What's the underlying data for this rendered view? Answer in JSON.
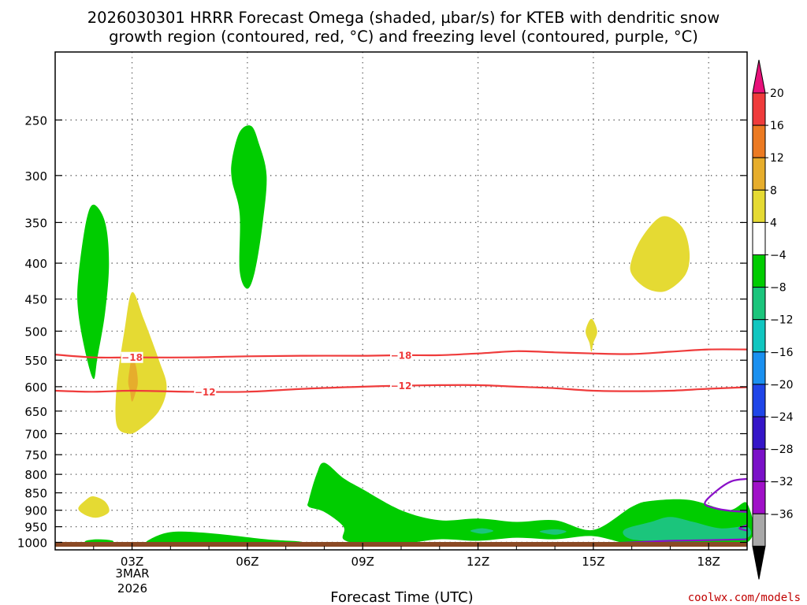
{
  "chart_data": {
    "type": "contour",
    "title_line1": "2026030301 HRRR Forecast Omega (shaded, µbar/s) for KTEB with dendritic snow",
    "title_line2": "growth region (contoured, red, °C) and freezing level (contoured, purple, °C)",
    "xlabel": "Forecast Time (UTC)",
    "x_ticks": [
      {
        "label": "03Z",
        "hour": 3
      },
      {
        "label": "06Z",
        "hour": 6
      },
      {
        "label": "09Z",
        "hour": 9
      },
      {
        "label": "12Z",
        "hour": 12
      },
      {
        "label": "15Z",
        "hour": 15
      },
      {
        "label": "18Z",
        "hour": 18
      }
    ],
    "date_label_line1": "3MAR",
    "date_label_line2": "2026",
    "x_range_hours": [
      1,
      19
    ],
    "y_axis": "pressure (mb), log scale, inverted",
    "y_range_mb": [
      1025,
      200
    ],
    "y_ticks": [
      250,
      300,
      350,
      400,
      450,
      500,
      550,
      600,
      650,
      700,
      750,
      800,
      850,
      900,
      950,
      1000
    ],
    "colorbar": {
      "levels": [
        "20",
        "16",
        "12",
        "8",
        "4",
        "-4",
        "-8",
        "-12",
        "-16",
        "-20",
        "-24",
        "-28",
        "-32",
        "-36"
      ],
      "colors": [
        "#e8117a",
        "#ef3b3b",
        "#ec7a22",
        "#e6ad2c",
        "#e5da33",
        "#ffffff",
        "#00cc00",
        "#1bc57c",
        "#11c6c0",
        "#1a90f0",
        "#1f45e8",
        "#3515c8",
        "#7a10c8",
        "#a010c8",
        "#a8a8a8",
        "#000000"
      ]
    },
    "dendritic_contours": [
      {
        "label": "-18",
        "color": "#ef3b3b",
        "points": [
          [
            1.0,
            540
          ],
          [
            2.0,
            545
          ],
          [
            3.0,
            545
          ],
          [
            4.5,
            545
          ],
          [
            6.0,
            543
          ],
          [
            7.5,
            542
          ],
          [
            9.0,
            542
          ],
          [
            10.0,
            541
          ],
          [
            11.0,
            541
          ],
          [
            12.0,
            538
          ],
          [
            13.0,
            534
          ],
          [
            14.0,
            536
          ],
          [
            15.0,
            538
          ],
          [
            16.0,
            539
          ],
          [
            17.0,
            535
          ],
          [
            18.0,
            531
          ],
          [
            19.0,
            531
          ]
        ]
      },
      {
        "label": "-12",
        "color": "#ef3b3b",
        "points": [
          [
            1.0,
            608
          ],
          [
            2.0,
            610
          ],
          [
            3.0,
            608
          ],
          [
            4.5,
            610
          ],
          [
            6.0,
            610
          ],
          [
            7.5,
            604
          ],
          [
            9.0,
            600
          ],
          [
            10.0,
            598
          ],
          [
            11.0,
            597
          ],
          [
            12.0,
            597
          ],
          [
            13.0,
            600
          ],
          [
            14.0,
            603
          ],
          [
            15.0,
            608
          ],
          [
            16.0,
            609
          ],
          [
            17.0,
            608
          ],
          [
            18.0,
            604
          ],
          [
            19.0,
            601
          ]
        ]
      }
    ],
    "freezing_contours": [
      {
        "label": "0",
        "color": "#8a10c8",
        "points": [
          [
            14.2,
            1010
          ],
          [
            15.0,
            1005
          ],
          [
            16.0,
            1000
          ],
          [
            17.0,
            995
          ],
          [
            18.0,
            993
          ],
          [
            19.0,
            990
          ]
        ]
      },
      {
        "label": "0",
        "color": "#8a10c8",
        "points": [
          [
            19.0,
            812
          ],
          [
            18.6,
            818
          ],
          [
            18.2,
            845
          ],
          [
            17.9,
            880
          ],
          [
            18.2,
            895
          ],
          [
            18.6,
            902
          ],
          [
            19.0,
            905
          ]
        ]
      },
      {
        "label": "0",
        "color": "#8a10c8",
        "points": [
          [
            19.0,
            945
          ],
          [
            18.8,
            955
          ],
          [
            19.0,
            962
          ]
        ]
      }
    ],
    "omega_regions": [
      {
        "value": "-4 to -8",
        "color": "#00cc00",
        "points": [
          [
            1.6,
            470
          ],
          [
            1.6,
            420
          ],
          [
            1.8,
            350
          ],
          [
            2.0,
            330
          ],
          [
            2.3,
            350
          ],
          [
            2.4,
            400
          ],
          [
            2.3,
            470
          ],
          [
            2.1,
            545
          ],
          [
            2.0,
            585
          ],
          [
            1.8,
            540
          ]
        ]
      },
      {
        "value": "-4 to -8",
        "color": "#00cc00",
        "points": [
          [
            5.6,
            285
          ],
          [
            5.8,
            260
          ],
          [
            6.1,
            255
          ],
          [
            6.3,
            270
          ],
          [
            6.5,
            300
          ],
          [
            6.4,
            350
          ],
          [
            6.2,
            410
          ],
          [
            6.0,
            435
          ],
          [
            5.8,
            410
          ],
          [
            5.8,
            340
          ],
          [
            5.6,
            305
          ]
        ]
      },
      {
        "value": "4 to 8",
        "color": "#e5da33",
        "points": [
          [
            2.6,
            680
          ],
          [
            2.6,
            600
          ],
          [
            2.8,
            500
          ],
          [
            3.0,
            440
          ],
          [
            3.3,
            480
          ],
          [
            3.7,
            550
          ],
          [
            3.9,
            600
          ],
          [
            3.7,
            650
          ],
          [
            3.2,
            690
          ],
          [
            2.9,
            700
          ]
        ]
      },
      {
        "value": "8 to 12",
        "color": "#e6ad2c",
        "points": [
          [
            2.9,
            590
          ],
          [
            2.95,
            560
          ],
          [
            3.0,
            540
          ],
          [
            3.1,
            560
          ],
          [
            3.15,
            590
          ],
          [
            3.1,
            610
          ],
          [
            3.0,
            630
          ],
          [
            2.95,
            610
          ]
        ]
      },
      {
        "value": "4 to 8",
        "color": "#e5da33",
        "points": [
          [
            1.6,
            895
          ],
          [
            1.8,
            870
          ],
          [
            2.0,
            860
          ],
          [
            2.3,
            875
          ],
          [
            2.4,
            905
          ],
          [
            2.1,
            922
          ],
          [
            1.8,
            915
          ]
        ]
      },
      {
        "value": "4 to 8",
        "color": "#e5da33",
        "points": [
          [
            16.0,
            395
          ],
          [
            16.3,
            365
          ],
          [
            16.8,
            343
          ],
          [
            17.3,
            355
          ],
          [
            17.5,
            385
          ],
          [
            17.4,
            415
          ],
          [
            16.9,
            438
          ],
          [
            16.4,
            435
          ],
          [
            16.0,
            415
          ]
        ]
      },
      {
        "value": "4 to 8",
        "color": "#e5da33",
        "points": [
          [
            14.8,
            500
          ],
          [
            14.95,
            480
          ],
          [
            15.1,
            500
          ],
          [
            15.0,
            520
          ],
          [
            14.95,
            535
          ],
          [
            14.9,
            520
          ]
        ]
      },
      {
        "value": "-4 to -8",
        "color": "#00cc00",
        "points": [
          [
            1.8,
            995
          ],
          [
            2.1,
            990
          ],
          [
            2.5,
            995
          ],
          [
            2.4,
            1008
          ],
          [
            2.0,
            1010
          ],
          [
            1.8,
            1005
          ]
        ]
      },
      {
        "value": "-4 to -8",
        "color": "#00cc00",
        "points": [
          [
            3.4,
            995
          ],
          [
            4.0,
            967
          ],
          [
            5.0,
            970
          ],
          [
            6.5,
            990
          ],
          [
            7.4,
            998
          ],
          [
            7.3,
            1010
          ],
          [
            6.0,
            1012
          ],
          [
            5.0,
            1010
          ],
          [
            4.0,
            1010
          ],
          [
            3.5,
            1005
          ]
        ]
      },
      {
        "value": "-4 to -8",
        "color": "#00cc00",
        "points": [
          [
            7.6,
            870
          ],
          [
            7.8,
            800
          ],
          [
            8.0,
            770
          ],
          [
            8.5,
            810
          ],
          [
            9.0,
            840
          ],
          [
            10.0,
            900
          ],
          [
            11.0,
            930
          ],
          [
            12.0,
            925
          ],
          [
            13.0,
            935
          ],
          [
            14.0,
            930
          ],
          [
            15.0,
            960
          ],
          [
            16.0,
            890
          ],
          [
            16.5,
            873
          ],
          [
            17.5,
            870
          ],
          [
            18.5,
            900
          ],
          [
            19.0,
            880
          ],
          [
            19.0,
            1000
          ],
          [
            17.0,
            1007
          ],
          [
            16.0,
            1007
          ],
          [
            15.0,
            980
          ],
          [
            14.0,
            990
          ],
          [
            13.0,
            985
          ],
          [
            12.0,
            995
          ],
          [
            11.0,
            990
          ],
          [
            10.0,
            1005
          ],
          [
            9.0,
            1005
          ],
          [
            8.5,
            990
          ],
          [
            8.5,
            950
          ],
          [
            8.0,
            905
          ],
          [
            7.6,
            890
          ]
        ]
      },
      {
        "value": "-8 to -12",
        "color": "#1bc57c",
        "points": [
          [
            15.8,
            960
          ],
          [
            16.5,
            935
          ],
          [
            17.0,
            920
          ],
          [
            17.6,
            935
          ],
          [
            18.3,
            955
          ],
          [
            19.0,
            950
          ],
          [
            19.0,
            985
          ],
          [
            18.0,
            992
          ],
          [
            17.0,
            995
          ],
          [
            16.0,
            990
          ]
        ]
      },
      {
        "value": "-8 to -12",
        "color": "#1bc57c",
        "points": [
          [
            11.8,
            963
          ],
          [
            12.1,
            955
          ],
          [
            12.4,
            963
          ],
          [
            12.1,
            972
          ]
        ]
      },
      {
        "value": "-8 to -12",
        "color": "#1bc57c",
        "points": [
          [
            13.6,
            965
          ],
          [
            14.0,
            958
          ],
          [
            14.3,
            965
          ],
          [
            14.0,
            975
          ]
        ]
      }
    ]
  },
  "credit": "coolwx.com/models"
}
